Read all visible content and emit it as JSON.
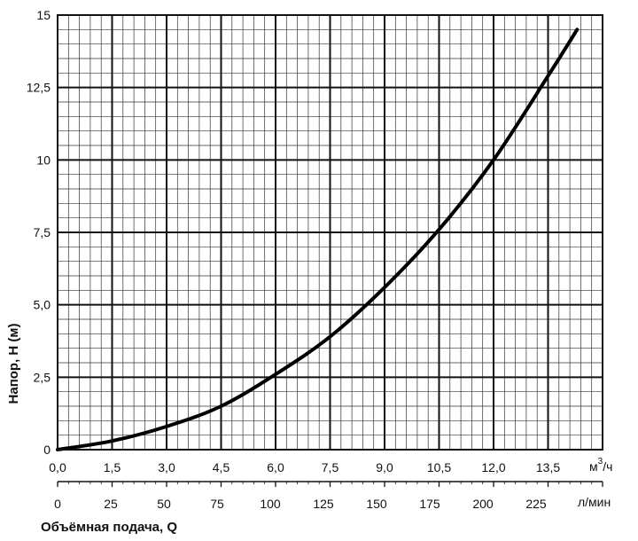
{
  "chart_data": {
    "type": "line",
    "ylabel": "Напор,  H (м)",
    "xlabel": "Объёмная подача, Q",
    "x_unit_primary": "м",
    "x_unit_primary_sup": "3",
    "x_unit_primary_tail": "/ч",
    "x_unit_secondary": "л/мин",
    "ylim": [
      0,
      15
    ],
    "xlim": [
      0,
      15
    ],
    "y_ticks": [
      "0",
      "2,5",
      "5,0",
      "7,5",
      "10",
      "12,5",
      "15"
    ],
    "x_ticks_primary": [
      "0,0",
      "1,5",
      "3,0",
      "4,5",
      "6,0",
      "7,5",
      "9,0",
      "10,5",
      "12,0",
      "13,5"
    ],
    "x_ticks_secondary": [
      "0",
      "25",
      "50",
      "75",
      "100",
      "125",
      "150",
      "175",
      "200",
      "225"
    ],
    "grid": true,
    "series": [
      {
        "x": [
          0,
          1.5,
          3.0,
          4.5,
          6.0,
          7.5,
          9.0,
          10.5,
          12.0,
          13.5,
          14.3
        ],
        "y": [
          0,
          0.3,
          0.8,
          1.5,
          2.6,
          3.9,
          5.6,
          7.6,
          10.0,
          12.9,
          14.5
        ]
      }
    ]
  }
}
